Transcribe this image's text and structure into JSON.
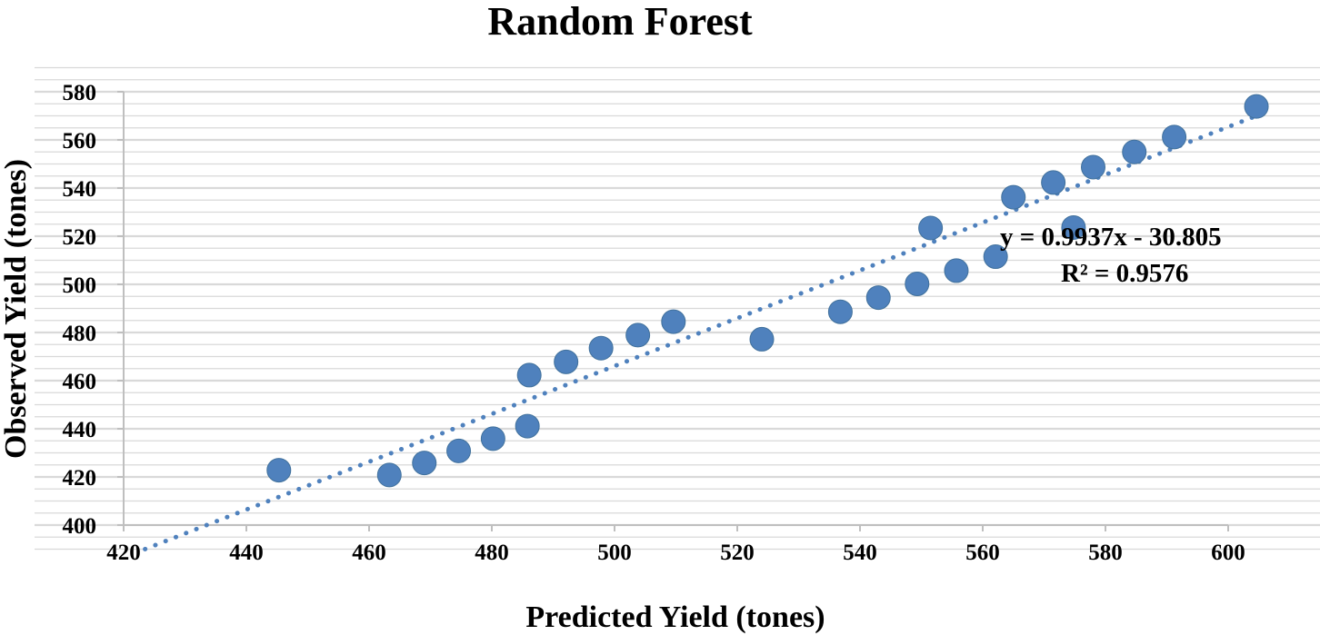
{
  "chart_data": {
    "type": "scatter",
    "title": "Random Forest",
    "xlabel": "Predicted Yield (tones)",
    "ylabel": "Observed Yield (tones)",
    "xlim": [
      420,
      610
    ],
    "ylim": [
      400,
      585
    ],
    "x_ticks": [
      420,
      440,
      460,
      480,
      500,
      520,
      540,
      560,
      580,
      600
    ],
    "y_ticks": [
      400,
      420,
      440,
      460,
      480,
      500,
      520,
      540,
      560,
      580
    ],
    "grid": true,
    "series": [
      {
        "x": [
          445.3,
          463.3,
          469.0,
          474.6,
          480.2,
          485.8,
          486.1,
          492.1,
          497.8,
          503.8,
          509.6,
          524.0,
          536.8,
          543.0,
          549.3,
          551.5,
          555.7,
          562.1,
          565.0,
          571.5,
          574.8,
          578.0,
          584.7,
          591.2,
          604.6
        ],
        "y": [
          422.8,
          420.8,
          425.8,
          430.8,
          435.9,
          441.1,
          462.3,
          467.8,
          473.5,
          478.9,
          484.5,
          477.2,
          488.6,
          494.5,
          500.2,
          523.4,
          505.7,
          511.5,
          536.2,
          542.3,
          523.6,
          548.7,
          555.0,
          561.2,
          573.9
        ]
      }
    ],
    "trendline": {
      "equation": "y = 0.9937x - 30.805",
      "r_squared": "R² = 0.9576",
      "slope": 0.9937,
      "intercept": -30.805,
      "style": "dotted"
    },
    "colors": {
      "marker": "#4f81bd",
      "trendline": "#4f81bd",
      "grid": "#d9d9d9",
      "axis": "#bfbfbf"
    }
  }
}
